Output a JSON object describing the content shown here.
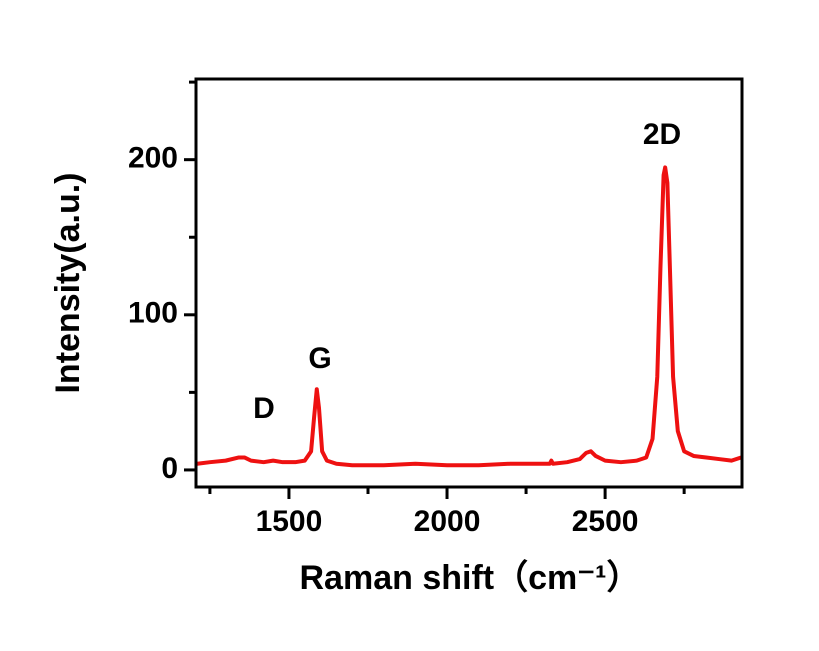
{
  "chart_data": {
    "type": "line",
    "xlabel": "Raman shift（cm⁻¹）",
    "ylabel": "Intensity(a.u.)",
    "annotations": [
      "D",
      "G",
      "2D"
    ],
    "x": [
      1210,
      1250,
      1300,
      1340,
      1360,
      1380,
      1420,
      1450,
      1480,
      1520,
      1550,
      1570,
      1580,
      1588,
      1595,
      1605,
      1620,
      1650,
      1700,
      1800,
      1900,
      2000,
      2100,
      2200,
      2300,
      2325,
      2330,
      2335,
      2380,
      2420,
      2440,
      2455,
      2470,
      2500,
      2550,
      2600,
      2630,
      2650,
      2665,
      2675,
      2685,
      2690,
      2697,
      2705,
      2715,
      2730,
      2750,
      2780,
      2820,
      2860,
      2900,
      2930
    ],
    "series": [
      {
        "color": "#ee1111",
        "values": [
          4,
          5,
          6,
          8,
          8,
          6,
          5,
          6,
          5,
          5,
          6,
          12,
          35,
          52,
          40,
          12,
          6,
          4,
          3,
          3,
          4,
          3,
          3,
          4,
          4,
          4,
          6,
          4,
          5,
          7,
          11,
          12,
          9,
          6,
          5,
          6,
          8,
          20,
          60,
          130,
          190,
          195,
          185,
          130,
          60,
          25,
          12,
          9,
          8,
          7,
          6,
          8
        ]
      }
    ],
    "xlim": [
      1206,
      2933
    ],
    "ylim": [
      -11,
      252
    ],
    "xticks": [
      1500,
      2000,
      2500
    ],
    "yticks": [
      0,
      100,
      200
    ],
    "xminorticks": [
      1250,
      1750,
      2250,
      2750
    ],
    "yminorticks": [
      50,
      150,
      250
    ]
  }
}
